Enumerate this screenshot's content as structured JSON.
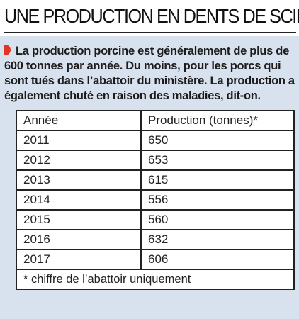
{
  "title": "UNE PRODUCTION EN DENTS DE SCIE",
  "lead": "La production porcine est généralement de plus de 600 tonnes par année. Du moins, pour les porcs qui sont tués dans l’abattoir du ministère. La production a également chuté en raison des maladies, dit-on.",
  "colors": {
    "box_bg": "#d8e2ee",
    "marker": "#e03424"
  },
  "table": {
    "headers": [
      "Année",
      "Production (tonnes)*"
    ],
    "rows": [
      [
        "2011",
        "650"
      ],
      [
        "2012",
        "653"
      ],
      [
        "2013",
        "615"
      ],
      [
        "2014",
        "556"
      ],
      [
        "2015",
        "560"
      ],
      [
        "2016",
        "632"
      ],
      [
        "2017",
        "606"
      ]
    ],
    "footnote": "* chiffre de l’abattoir uniquement"
  }
}
